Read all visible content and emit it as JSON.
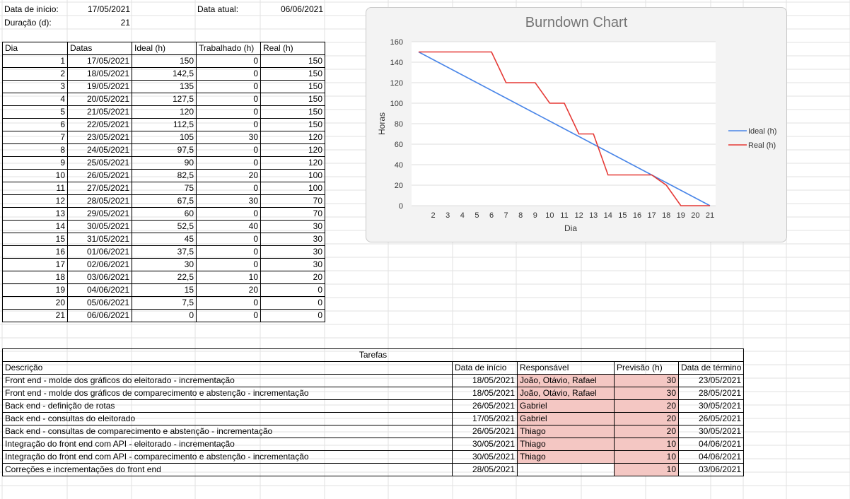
{
  "header": {
    "start_label": "Data de início:",
    "start_value": "17/05/2021",
    "duration_label": "Duração (d):",
    "duration_value": "21",
    "current_label": "Data atual:",
    "current_value": "06/06/2021"
  },
  "burndown": {
    "columns": [
      "Dia",
      "Datas",
      "Ideal (h)",
      "Trabalhado (h)",
      "Real (h)"
    ],
    "rows": [
      [
        "1",
        "17/05/2021",
        "150",
        "0",
        "150"
      ],
      [
        "2",
        "18/05/2021",
        "142,5",
        "0",
        "150"
      ],
      [
        "3",
        "19/05/2021",
        "135",
        "0",
        "150"
      ],
      [
        "4",
        "20/05/2021",
        "127,5",
        "0",
        "150"
      ],
      [
        "5",
        "21/05/2021",
        "120",
        "0",
        "150"
      ],
      [
        "6",
        "22/05/2021",
        "112,5",
        "0",
        "150"
      ],
      [
        "7",
        "23/05/2021",
        "105",
        "30",
        "120"
      ],
      [
        "8",
        "24/05/2021",
        "97,5",
        "0",
        "120"
      ],
      [
        "9",
        "25/05/2021",
        "90",
        "0",
        "120"
      ],
      [
        "10",
        "26/05/2021",
        "82,5",
        "20",
        "100"
      ],
      [
        "11",
        "27/05/2021",
        "75",
        "0",
        "100"
      ],
      [
        "12",
        "28/05/2021",
        "67,5",
        "30",
        "70"
      ],
      [
        "13",
        "29/05/2021",
        "60",
        "0",
        "70"
      ],
      [
        "14",
        "30/05/2021",
        "52,5",
        "40",
        "30"
      ],
      [
        "15",
        "31/05/2021",
        "45",
        "0",
        "30"
      ],
      [
        "16",
        "01/06/2021",
        "37,5",
        "0",
        "30"
      ],
      [
        "17",
        "02/06/2021",
        "30",
        "0",
        "30"
      ],
      [
        "18",
        "03/06/2021",
        "22,5",
        "10",
        "20"
      ],
      [
        "19",
        "04/06/2021",
        "15",
        "20",
        "0"
      ],
      [
        "20",
        "05/06/2021",
        "7,5",
        "0",
        "0"
      ],
      [
        "21",
        "06/06/2021",
        "0",
        "0",
        "0"
      ]
    ]
  },
  "tasks": {
    "title": "Tarefas",
    "columns": [
      "Descrição",
      "Data de início",
      "Responsável",
      "Previsão (h)",
      "Data de término"
    ],
    "rows": [
      [
        "Front end - molde dos gráficos do eleitorado - incrementação",
        "18/05/2021",
        "João, Otávio, Rafael",
        "30",
        "23/05/2021"
      ],
      [
        "Front end - molde dos gráficos de comparecimento e abstenção - incrementação",
        "18/05/2021",
        "João, Otávio, Rafael",
        "30",
        "28/05/2021"
      ],
      [
        "Back end - definição de rotas",
        "26/05/2021",
        "Gabriel",
        "20",
        "30/05/2021"
      ],
      [
        "Back end - consultas do eleitorado",
        "17/05/2021",
        "Gabriel",
        "20",
        "26/05/2021"
      ],
      [
        "Back end - consultas de comparecimento e abstenção - incrementação",
        "26/05/2021",
        "Thiago",
        "20",
        "30/05/2021"
      ],
      [
        "Integração do front end com API - eleitorado - incrementação",
        "30/05/2021",
        "Thiago",
        "10",
        "04/06/2021"
      ],
      [
        "Integração do front end com API - comparecimento e abstenção - incrementação",
        "30/05/2021",
        "Thiago",
        "10",
        "04/06/2021"
      ],
      [
        "Correções e incrementações do front end",
        "28/05/2021",
        "",
        "10",
        "03/06/2021"
      ]
    ]
  },
  "chart_data": {
    "type": "line",
    "title": "Burndown Chart",
    "xlabel": "Dia",
    "ylabel": "Horas",
    "x_ticks": [
      "2",
      "3",
      "4",
      "5",
      "6",
      "7",
      "8",
      "9",
      "10",
      "11",
      "12",
      "13",
      "14",
      "15",
      "16",
      "17",
      "18",
      "19",
      "20",
      "21"
    ],
    "x": [
      1,
      2,
      3,
      4,
      5,
      6,
      7,
      8,
      9,
      10,
      11,
      12,
      13,
      14,
      15,
      16,
      17,
      18,
      19,
      20,
      21
    ],
    "ylim": [
      0,
      160
    ],
    "y_ticks": [
      0,
      20,
      40,
      60,
      80,
      100,
      120,
      140,
      160
    ],
    "legend": "right",
    "series": [
      {
        "name": "Ideal (h)",
        "color": "#4a86e8",
        "values": [
          150,
          142.5,
          135,
          127.5,
          120,
          112.5,
          105,
          97.5,
          90,
          82.5,
          75,
          67.5,
          60,
          52.5,
          45,
          37.5,
          30,
          22.5,
          15,
          7.5,
          0
        ]
      },
      {
        "name": "Real (h)",
        "color": "#e53935",
        "values": [
          150,
          150,
          150,
          150,
          150,
          150,
          120,
          120,
          120,
          100,
          100,
          70,
          70,
          30,
          30,
          30,
          30,
          20,
          0,
          0,
          0
        ]
      }
    ]
  }
}
